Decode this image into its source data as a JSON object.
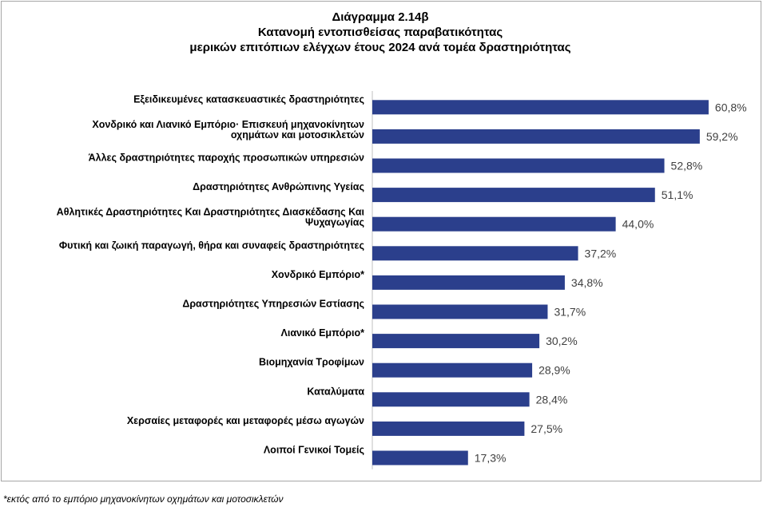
{
  "chart_data": {
    "type": "bar",
    "orientation": "horizontal",
    "title": "Διάγραμμα 2.14β",
    "subtitle": [
      "Κατανομή εντοπισθείσας παραβατικότητας",
      "μερικών επιτόπιων ελέγχων έτους 2024 ανά τομέα δραστηριότητας"
    ],
    "categories": [
      [
        "Εξειδικευμένες κατασκευαστικές δραστηριότητες"
      ],
      [
        "Χονδρικό και Λιανικό Εμπόριο· Επισκευή  μηχανοκίνητων",
        "οχημάτων και μοτοσικλετών"
      ],
      [
        "Άλλες δραστηριότητες παροχής προσωπικών υπηρεσιών"
      ],
      [
        "Δραστηριότητες Ανθρώπινης Υγείας"
      ],
      [
        "Αθλητικές Δραστηριότητες Και Δραστηριότητες Διασκέδασης Και",
        "Ψυχαγωγίας"
      ],
      [
        "Φυτική και ζωική παραγωγή, θήρα και συναφείς δραστηριότητες"
      ],
      [
        "Χονδρικό Εμπόριο*"
      ],
      [
        "Δραστηριότητες Υπηρεσιών Εστίασης"
      ],
      [
        "Λιανικό Εμπόριο*"
      ],
      [
        "Βιομηχανία Τροφίμων"
      ],
      [
        "Καταλύματα"
      ],
      [
        "Χερσαίες μεταφορές και μεταφορές μέσω αγωγών"
      ],
      [
        "Λοιποί Γενικοί Τομείς"
      ]
    ],
    "values": [
      60.8,
      59.2,
      52.8,
      51.1,
      44.0,
      37.2,
      34.8,
      31.7,
      30.2,
      28.9,
      28.4,
      27.5,
      17.3
    ],
    "value_labels": [
      "60,8%",
      "59,2%",
      "52,8%",
      "51,1%",
      "44,0%",
      "37,2%",
      "34,8%",
      "31,7%",
      "30,2%",
      "28,9%",
      "28,4%",
      "27,5%",
      "17,3%"
    ],
    "xlim": [
      0,
      65
    ],
    "xlabel": "",
    "ylabel": "",
    "grid": false,
    "legend": "none",
    "bar_color": "#2b3f8c"
  },
  "footnote": "*εκτός από το εμπόριο μηχανοκίνητων οχημάτων και μοτοσικλετών"
}
